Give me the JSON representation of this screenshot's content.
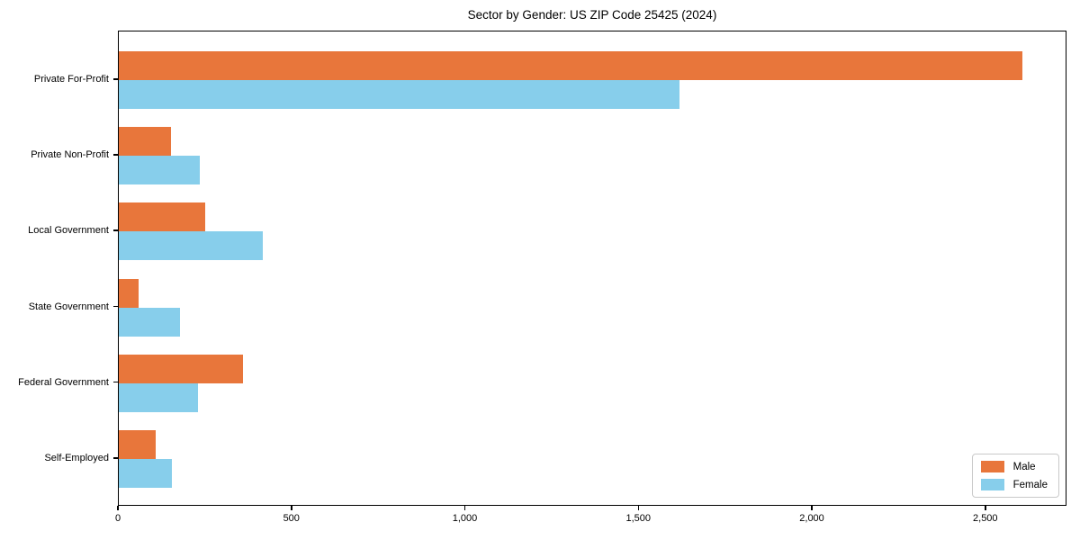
{
  "chart_data": {
    "type": "bar",
    "orientation": "horizontal",
    "title": "Sector by Gender: US ZIP Code 25425 (2024)",
    "categories": [
      "Private For-Profit",
      "Private Non-Profit",
      "Local Government",
      "State Government",
      "Federal Government",
      "Self-Employed"
    ],
    "series": [
      {
        "name": "Male",
        "color": "#e8763b",
        "values": [
          2605,
          150,
          248,
          57,
          358,
          106
        ]
      },
      {
        "name": "Female",
        "color": "#87ceeb",
        "values": [
          1617,
          234,
          415,
          177,
          228,
          152
        ]
      }
    ],
    "xlabel": "",
    "ylabel": "",
    "xlim": [
      0,
      2734
    ],
    "x_ticks": [
      {
        "value": 0,
        "label": "0"
      },
      {
        "value": 500,
        "label": "500"
      },
      {
        "value": 1000,
        "label": "1,000"
      },
      {
        "value": 1500,
        "label": "1,500"
      },
      {
        "value": 2000,
        "label": "2,000"
      },
      {
        "value": 2500,
        "label": "2,500"
      }
    ],
    "grid": false,
    "legend": {
      "position": "lower right",
      "entries": [
        "Male",
        "Female"
      ]
    }
  }
}
